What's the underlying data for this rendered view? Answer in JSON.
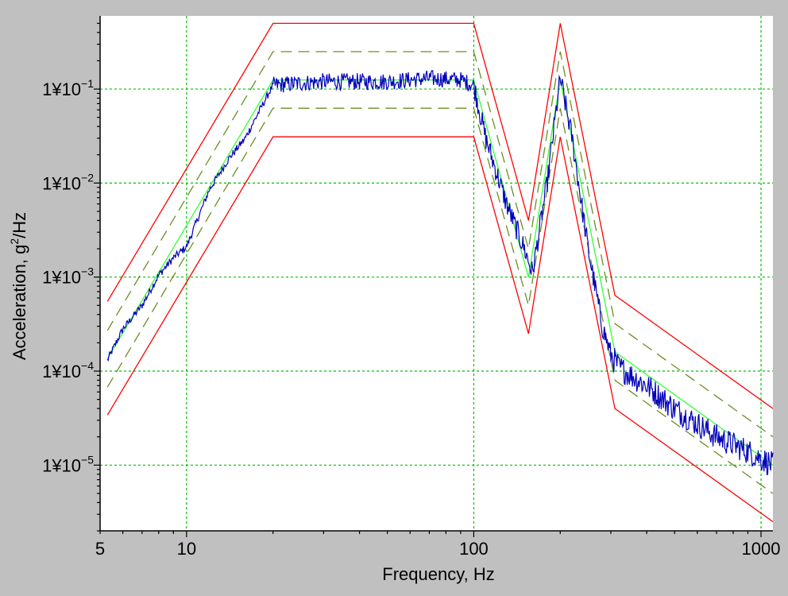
{
  "chart_data": {
    "type": "line",
    "title": "",
    "xlabel": "Frequency, Hz",
    "ylabel_main": "Acceleration, g",
    "ylabel_sup": "2",
    "ylabel_tail": "/Hz",
    "xscale": "log",
    "yscale": "log",
    "xlim": [
      5,
      1100
    ],
    "ylim": [
      2e-06,
      0.6
    ],
    "grid": true,
    "grid_color": "#00c000",
    "background": "#ffffff",
    "frame_color": "#c0c0c0",
    "xticks": [
      {
        "value": 5,
        "label": "5"
      },
      {
        "value": 10,
        "label": "10"
      },
      {
        "value": 100,
        "label": "100"
      },
      {
        "value": 1000,
        "label": "1000"
      }
    ],
    "yticks": [
      {
        "value": 0.1,
        "mant": "1¥10",
        "exp": "−1"
      },
      {
        "value": 0.01,
        "mant": "1¥10",
        "exp": "−2"
      },
      {
        "value": 0.001,
        "mant": "1¥10",
        "exp": "−3"
      },
      {
        "value": 0.0001,
        "mant": "1¥10",
        "exp": "−4"
      },
      {
        "value": 1e-05,
        "mant": "1¥10",
        "exp": "−5"
      }
    ],
    "series": [
      {
        "id": "abort_upper",
        "color": "#ff0000",
        "dash": "",
        "x": [
          5.3,
          20,
          100,
          155,
          200,
          310,
          1100
        ],
        "y": [
          0.00055,
          0.5,
          0.5,
          0.004,
          0.5,
          0.00064,
          4e-05
        ]
      },
      {
        "id": "alarm_upper",
        "color": "#6b8e23",
        "dash": "14,8",
        "x": [
          5.3,
          20,
          100,
          155,
          200,
          310,
          1100
        ],
        "y": [
          0.00027,
          0.25,
          0.25,
          0.002,
          0.25,
          0.00032,
          2e-05
        ]
      },
      {
        "id": "reference",
        "color": "#33ff33",
        "dash": "",
        "x": [
          5.3,
          20,
          100,
          155,
          200,
          310,
          1100
        ],
        "y": [
          0.000135,
          0.125,
          0.125,
          0.001,
          0.125,
          0.00016,
          1e-05
        ]
      },
      {
        "id": "alarm_lower",
        "color": "#6b8e23",
        "dash": "14,8",
        "x": [
          5.3,
          20,
          100,
          155,
          200,
          310,
          1100
        ],
        "y": [
          6.75e-05,
          0.0625,
          0.0625,
          0.0005,
          0.0625,
          8e-05,
          5e-06
        ]
      },
      {
        "id": "abort_lower",
        "color": "#ff0000",
        "dash": "",
        "x": [
          5.3,
          20,
          100,
          155,
          200,
          310,
          1100
        ],
        "y": [
          3.4e-05,
          0.031,
          0.031,
          0.00025,
          0.031,
          4e-05,
          2.5e-06
        ]
      },
      {
        "id": "measured",
        "color": "#0000bb",
        "dash": "",
        "noisy": true,
        "x": [
          5.3,
          6,
          7,
          8,
          9,
          10,
          12,
          14,
          16,
          18,
          20,
          30,
          50,
          70,
          90,
          100,
          110,
          130,
          150,
          160,
          180,
          200,
          220,
          250,
          280,
          300,
          320,
          400,
          500,
          700,
          900,
          1100
        ],
        "y": [
          0.00013,
          0.00028,
          0.0005,
          0.00105,
          0.0016,
          0.0021,
          0.0085,
          0.018,
          0.03,
          0.06,
          0.11,
          0.12,
          0.12,
          0.13,
          0.125,
          0.11,
          0.03,
          0.006,
          0.002,
          0.0011,
          0.01,
          0.13,
          0.03,
          0.002,
          0.0003,
          0.00015,
          0.00011,
          7e-05,
          4e-05,
          2e-05,
          1.4e-05,
          1e-05
        ]
      }
    ]
  }
}
